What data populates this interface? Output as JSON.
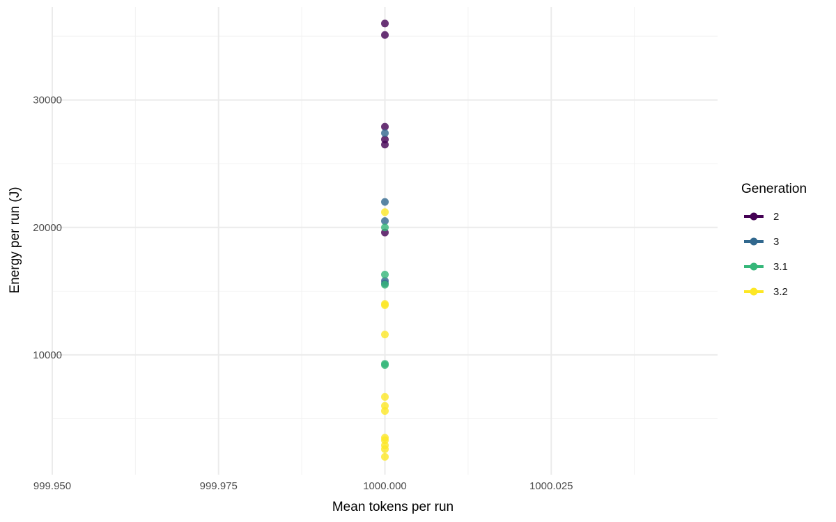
{
  "chart_data": {
    "type": "scatter",
    "title": "",
    "xlabel": "Mean tokens per run",
    "ylabel": "Energy per run (J)",
    "xlim": [
      999.95,
      1000.05
    ],
    "ylim": [
      600,
      37300
    ],
    "x_ticks": [
      999.95,
      999.975,
      1000.0,
      1000.025
    ],
    "x_tick_labels": [
      "999.950",
      "999.975",
      "1000.000",
      "1000.025"
    ],
    "y_ticks": [
      10000,
      20000,
      30000
    ],
    "y_tick_labels": [
      "10000",
      "20000",
      "30000"
    ],
    "grid": true,
    "legend": {
      "title": "Generation",
      "position": "right"
    },
    "series": [
      {
        "name": "2",
        "color": "#440154",
        "points": [
          [
            1000,
            36000
          ],
          [
            1000,
            35100
          ],
          [
            1000,
            27900
          ],
          [
            1000,
            26900
          ],
          [
            1000,
            26500
          ],
          [
            1000,
            19600
          ]
        ]
      },
      {
        "name": "3",
        "color": "#31688E",
        "points": [
          [
            1000,
            27400
          ],
          [
            1000,
            22000
          ],
          [
            1000,
            20500
          ],
          [
            1000,
            15800
          ],
          [
            1000,
            15600
          ]
        ]
      },
      {
        "name": "3.1",
        "color": "#35B779",
        "points": [
          [
            1000,
            20000
          ],
          [
            1000,
            16300
          ],
          [
            1000,
            15500
          ],
          [
            1000,
            9300
          ],
          [
            1000,
            9200
          ]
        ]
      },
      {
        "name": "3.2",
        "color": "#FDE725",
        "points": [
          [
            1000,
            21200
          ],
          [
            1000,
            14000
          ],
          [
            1000,
            13900
          ],
          [
            1000,
            11600
          ],
          [
            1000,
            6700
          ],
          [
            1000,
            6000
          ],
          [
            1000,
            5600
          ],
          [
            1000,
            3500
          ],
          [
            1000,
            3300
          ],
          [
            1000,
            2900
          ],
          [
            1000,
            2600
          ],
          [
            1000,
            2000
          ]
        ]
      }
    ]
  }
}
